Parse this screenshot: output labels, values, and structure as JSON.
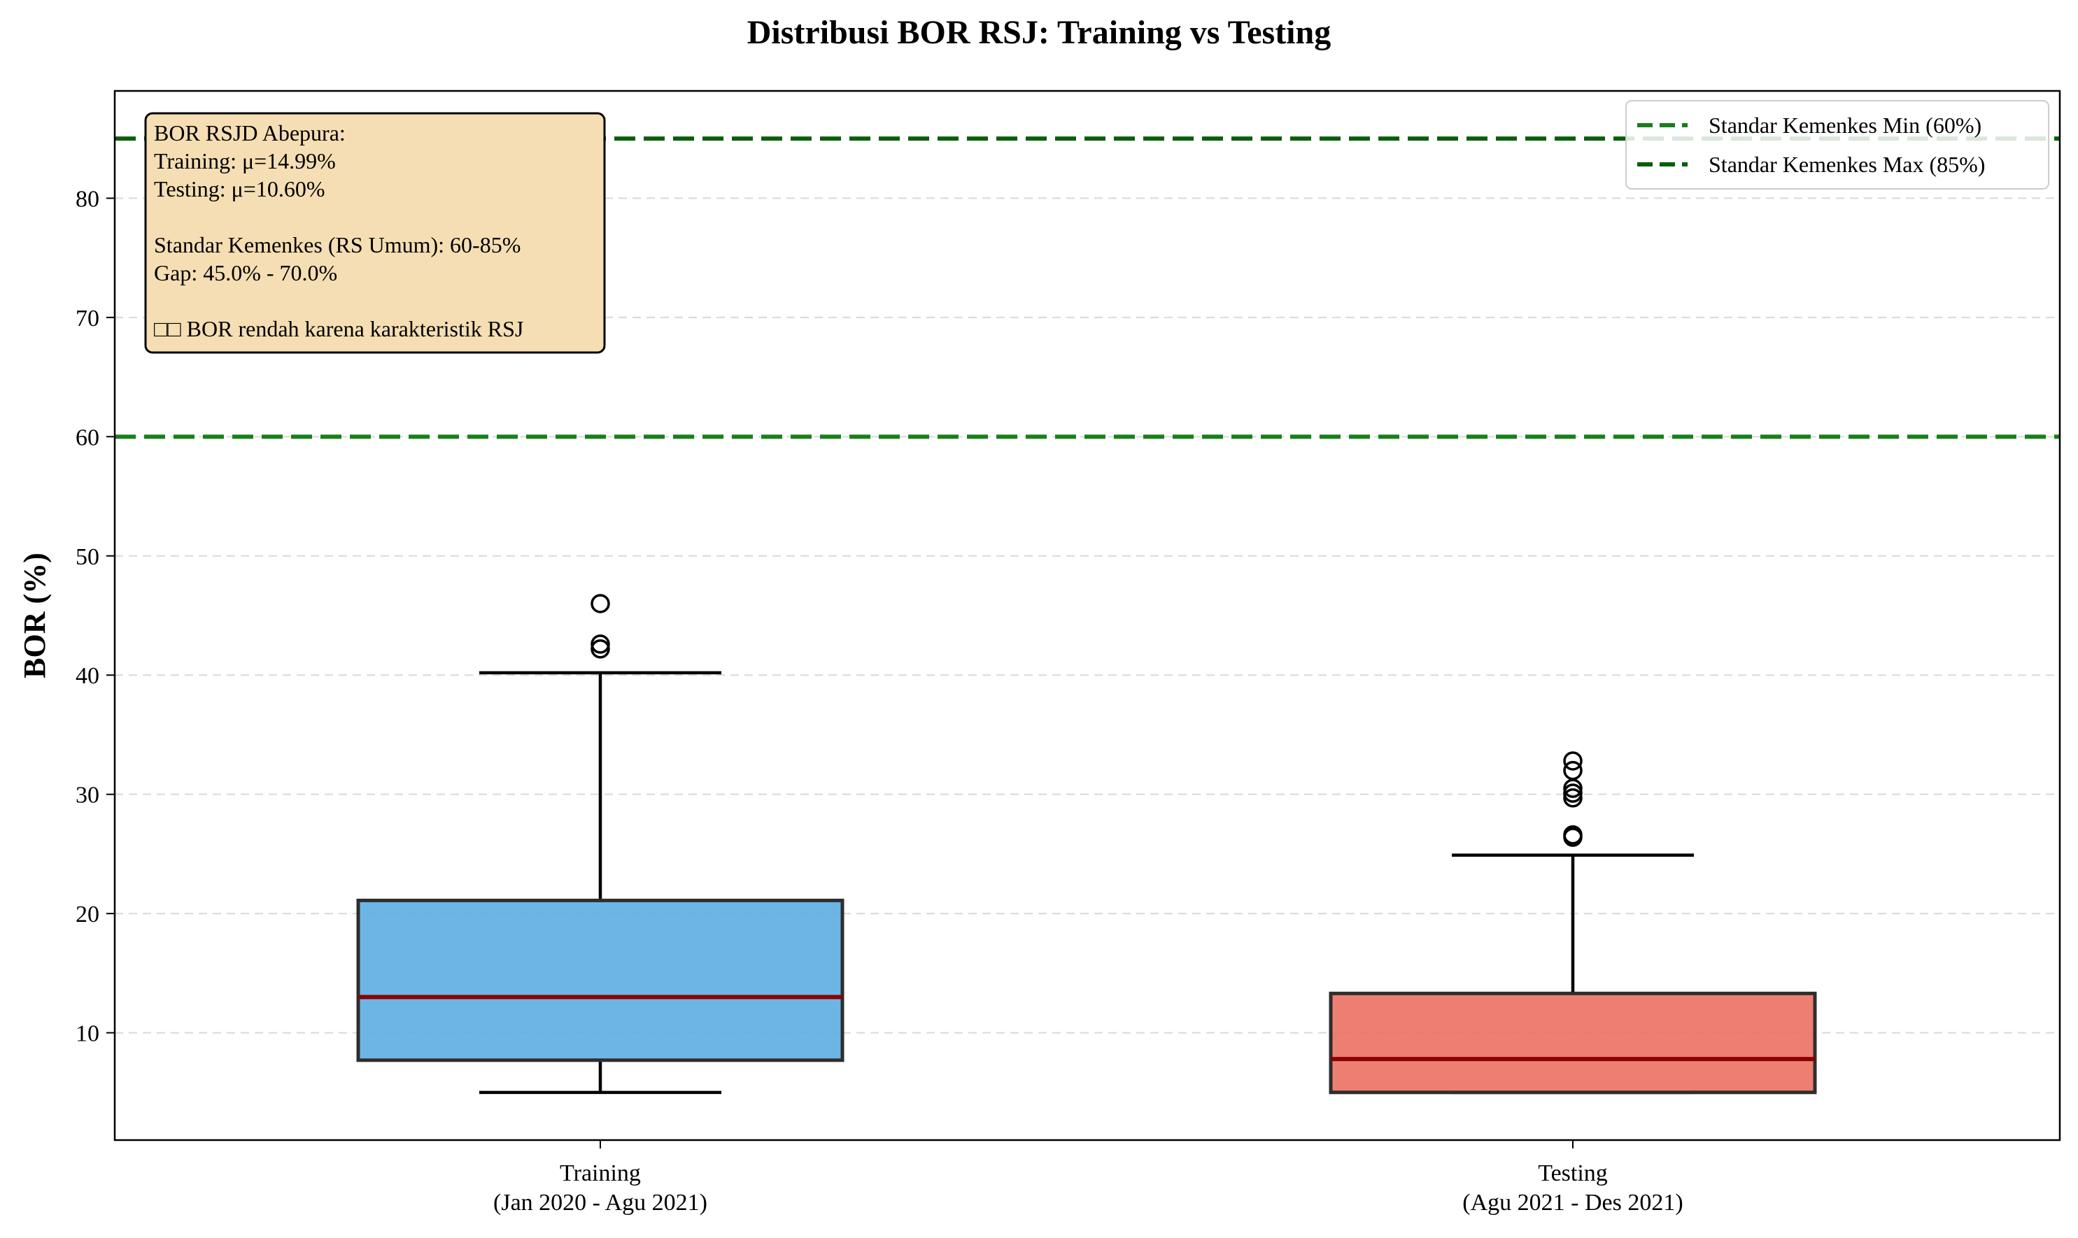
{
  "chart_data": {
    "type": "box",
    "title": "Distribusi BOR RSJ: Training vs Testing",
    "ylabel": "BOR (%)",
    "ylim": [
      1,
      89
    ],
    "yticks": [
      10,
      20,
      30,
      40,
      50,
      60,
      70,
      80
    ],
    "grid": "y-dashed",
    "categories": [
      {
        "line1": "Training",
        "line2": "(Jan 2020 - Agu 2021)"
      },
      {
        "line1": "Testing",
        "line2": "(Agu 2021 - Des 2021)"
      }
    ],
    "boxes": [
      {
        "name": "Training",
        "color": "#5dade2",
        "whisker_low": 5.0,
        "q1": 7.7,
        "median": 13.0,
        "q3": 21.1,
        "whisker_high": 40.2,
        "outliers": [
          42.2,
          42.6,
          46.0
        ]
      },
      {
        "name": "Testing",
        "color": "#ec7063",
        "whisker_low": 5.0,
        "q1": 5.0,
        "median": 7.8,
        "q3": 13.3,
        "whisker_high": 24.9,
        "outliers": [
          26.4,
          26.6,
          29.7,
          30.1,
          30.5,
          32.0,
          32.8
        ]
      }
    ],
    "median_color": "#8b0000",
    "reference_lines": [
      {
        "label": "Standar Kemenkes Min (60%)",
        "value": 60,
        "color": "#1a7f1a"
      },
      {
        "label": "Standar Kemenkes Max (85%)",
        "value": 85,
        "color": "#0b5e0b"
      }
    ],
    "legend_position": "top-right",
    "annotation": {
      "lines": [
        "BOR RSJD Abepura:",
        "Training: μ=14.99%",
        "Testing: μ=10.60%",
        "",
        "Standar Kemenkes (RS Umum): 60-85%",
        "Gap: 45.0% - 70.0%",
        "",
        "□□ BOR rendah karena karakteristik RSJ"
      ],
      "background": "#f5deb3"
    }
  }
}
